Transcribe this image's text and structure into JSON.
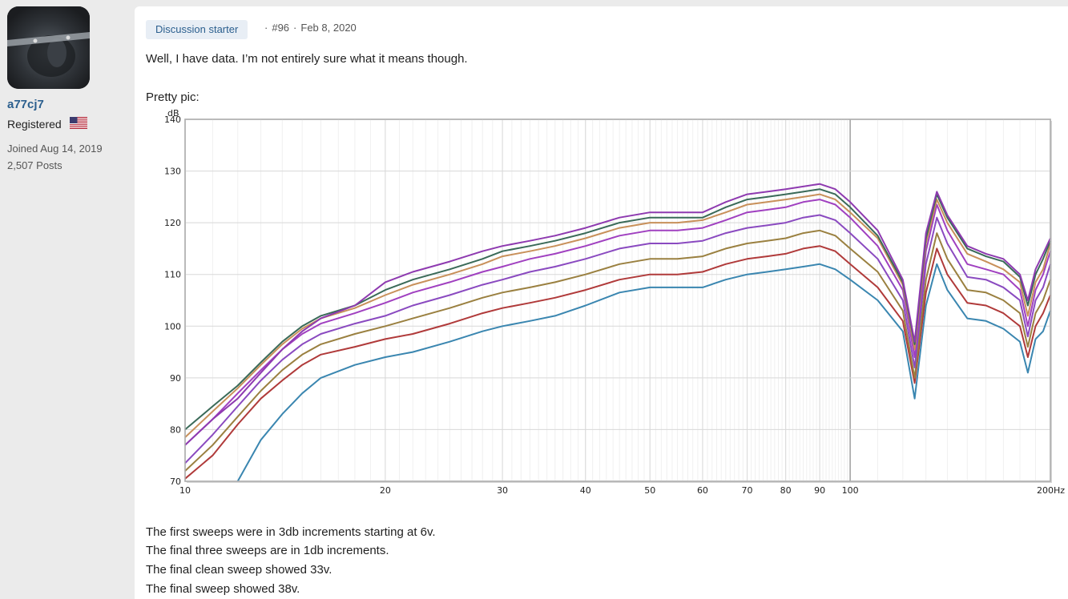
{
  "user": {
    "username": "a77cj7",
    "role": "Registered",
    "joined": "Joined Aug 14, 2019",
    "posts": "2,507 Posts",
    "flag_icon": "us-flag-icon"
  },
  "post": {
    "badge": "Discussion starter",
    "number": "#96",
    "separator": "·",
    "date": "Feb 8, 2020",
    "intro": "Well, I have data. I’m not entirely sure what it means though.",
    "pic_label": "Pretty pic:",
    "lines": [
      "The first sweeps were in 3db increments starting at 6v.",
      "The final three sweeps are in 1db increments.",
      "The final clean sweep showed 33v.",
      "The final sweep showed 38v."
    ]
  },
  "chart_data": {
    "type": "line",
    "ylabel": "dB",
    "xlabel": "",
    "x_scale": "log",
    "xlim": [
      10,
      200
    ],
    "ylim": [
      70,
      140
    ],
    "grid": true,
    "x_ticks": [
      {
        "value": 10,
        "label": "10"
      },
      {
        "value": 20,
        "label": "20"
      },
      {
        "value": 30,
        "label": "30"
      },
      {
        "value": 40,
        "label": "40"
      },
      {
        "value": 50,
        "label": "50"
      },
      {
        "value": 60,
        "label": "60"
      },
      {
        "value": 70,
        "label": "70"
      },
      {
        "value": 80,
        "label": "80"
      },
      {
        "value": 90,
        "label": "90"
      },
      {
        "value": 100,
        "label": "100"
      },
      {
        "value": 200,
        "label": "200Hz"
      }
    ],
    "y_ticks": [
      70,
      80,
      90,
      100,
      110,
      120,
      130,
      140
    ],
    "x": [
      10,
      11,
      12,
      13,
      14,
      15,
      16,
      18,
      20,
      22,
      25,
      28,
      30,
      33,
      36,
      40,
      45,
      50,
      55,
      60,
      65,
      70,
      75,
      80,
      85,
      90,
      95,
      100,
      110,
      120,
      125,
      130,
      135,
      140,
      150,
      160,
      170,
      180,
      185,
      190,
      195,
      200
    ],
    "series": [
      {
        "color": "#3a86b0",
        "values": [
          null,
          null,
          70,
          78,
          83,
          87,
          90,
          92.5,
          94,
          95,
          97,
          99,
          100,
          101,
          102,
          104,
          106.5,
          107.5,
          107.5,
          107.5,
          109,
          110,
          110.5,
          111,
          111.5,
          112,
          111,
          109,
          105,
          99,
          86,
          104,
          112,
          107,
          101.5,
          101,
          99.5,
          97,
          91,
          97.5,
          99,
          103
        ]
      },
      {
        "color": "#b03a3a",
        "values": [
          70.5,
          75,
          81,
          86,
          89.5,
          92.5,
          94.5,
          96,
          97.5,
          98.5,
          100.5,
          102.5,
          103.5,
          104.5,
          105.5,
          107,
          109,
          110,
          110,
          110.5,
          112,
          113,
          113.5,
          114,
          115,
          115.5,
          114.5,
          112,
          107.5,
          101,
          89,
          106.5,
          115,
          110,
          104.5,
          104,
          102.5,
          100,
          94,
          100,
          102.5,
          106
        ]
      },
      {
        "color": "#9a8040",
        "values": [
          72,
          77,
          82.5,
          87.5,
          91.5,
          94.5,
          96.5,
          98.5,
          100,
          101.5,
          103.5,
          105.5,
          106.5,
          107.5,
          108.5,
          110,
          112,
          113,
          113,
          113.5,
          115,
          116,
          116.5,
          117,
          118,
          118.5,
          117.5,
          115,
          110.5,
          103,
          90,
          109,
          118,
          113,
          107,
          106.5,
          105,
          102.5,
          96,
          102.5,
          105,
          109
        ]
      },
      {
        "color": "#8a4ac0",
        "values": [
          73.5,
          79,
          84.5,
          89.5,
          93.5,
          96.5,
          98.5,
          100.5,
          102,
          104,
          106,
          108,
          109,
          110.5,
          111.5,
          113,
          115,
          116,
          116,
          116.5,
          118,
          119,
          119.5,
          120,
          121,
          121.5,
          120.5,
          118,
          113,
          105,
          92,
          112,
          121,
          116,
          109.5,
          109,
          107.5,
          105,
          98,
          105,
          107.5,
          112
        ]
      },
      {
        "color": "#a040c0",
        "values": [
          77,
          82,
          87,
          91.5,
          95.5,
          98.5,
          100.5,
          102.5,
          104.5,
          106.5,
          108.5,
          110.5,
          111.5,
          113,
          114,
          115.5,
          117.5,
          118.5,
          118.5,
          119,
          120.5,
          122,
          122.5,
          123,
          124,
          124.5,
          123.5,
          121,
          115.5,
          107,
          94,
          114.5,
          123.5,
          118.5,
          112,
          111,
          110,
          107,
          100,
          107,
          110,
          114.5
        ]
      },
      {
        "color": "#c8905a",
        "values": [
          78.5,
          83.5,
          88,
          92.5,
          96.5,
          99.5,
          101.5,
          103.5,
          106,
          108,
          110,
          112,
          113.5,
          114.5,
          115.5,
          117,
          119,
          120,
          120,
          120.5,
          122,
          123.5,
          124,
          124.5,
          125,
          125.5,
          124.5,
          122,
          117,
          108,
          95.5,
          116,
          124.5,
          120,
          114,
          112.5,
          111,
          108.5,
          102,
          108.5,
          111,
          116
        ]
      },
      {
        "color": "#3a6a58",
        "values": [
          80,
          84.5,
          88.5,
          93,
          97,
          100,
          102,
          104,
          107,
          109,
          111,
          113,
          114.5,
          115.5,
          116.5,
          118,
          120,
          121,
          121,
          121,
          123,
          124.5,
          125,
          125.5,
          126,
          126.5,
          125.5,
          123,
          117.5,
          108.5,
          96.5,
          117,
          125.5,
          121,
          115,
          113.5,
          112.5,
          109.5,
          104,
          110,
          113,
          116.5
        ]
      },
      {
        "color": "#8e3ab0",
        "values": [
          77,
          82,
          86,
          91,
          95.5,
          99,
          101.5,
          104,
          108.5,
          110.5,
          112.5,
          114.5,
          115.5,
          116.5,
          117.5,
          119,
          121,
          122,
          122,
          122,
          124,
          125.5,
          126,
          126.5,
          127,
          127.5,
          126.5,
          124,
          118.5,
          109,
          97,
          118,
          126,
          121.5,
          115.5,
          114,
          113,
          110,
          105,
          111,
          114,
          117
        ]
      }
    ]
  }
}
